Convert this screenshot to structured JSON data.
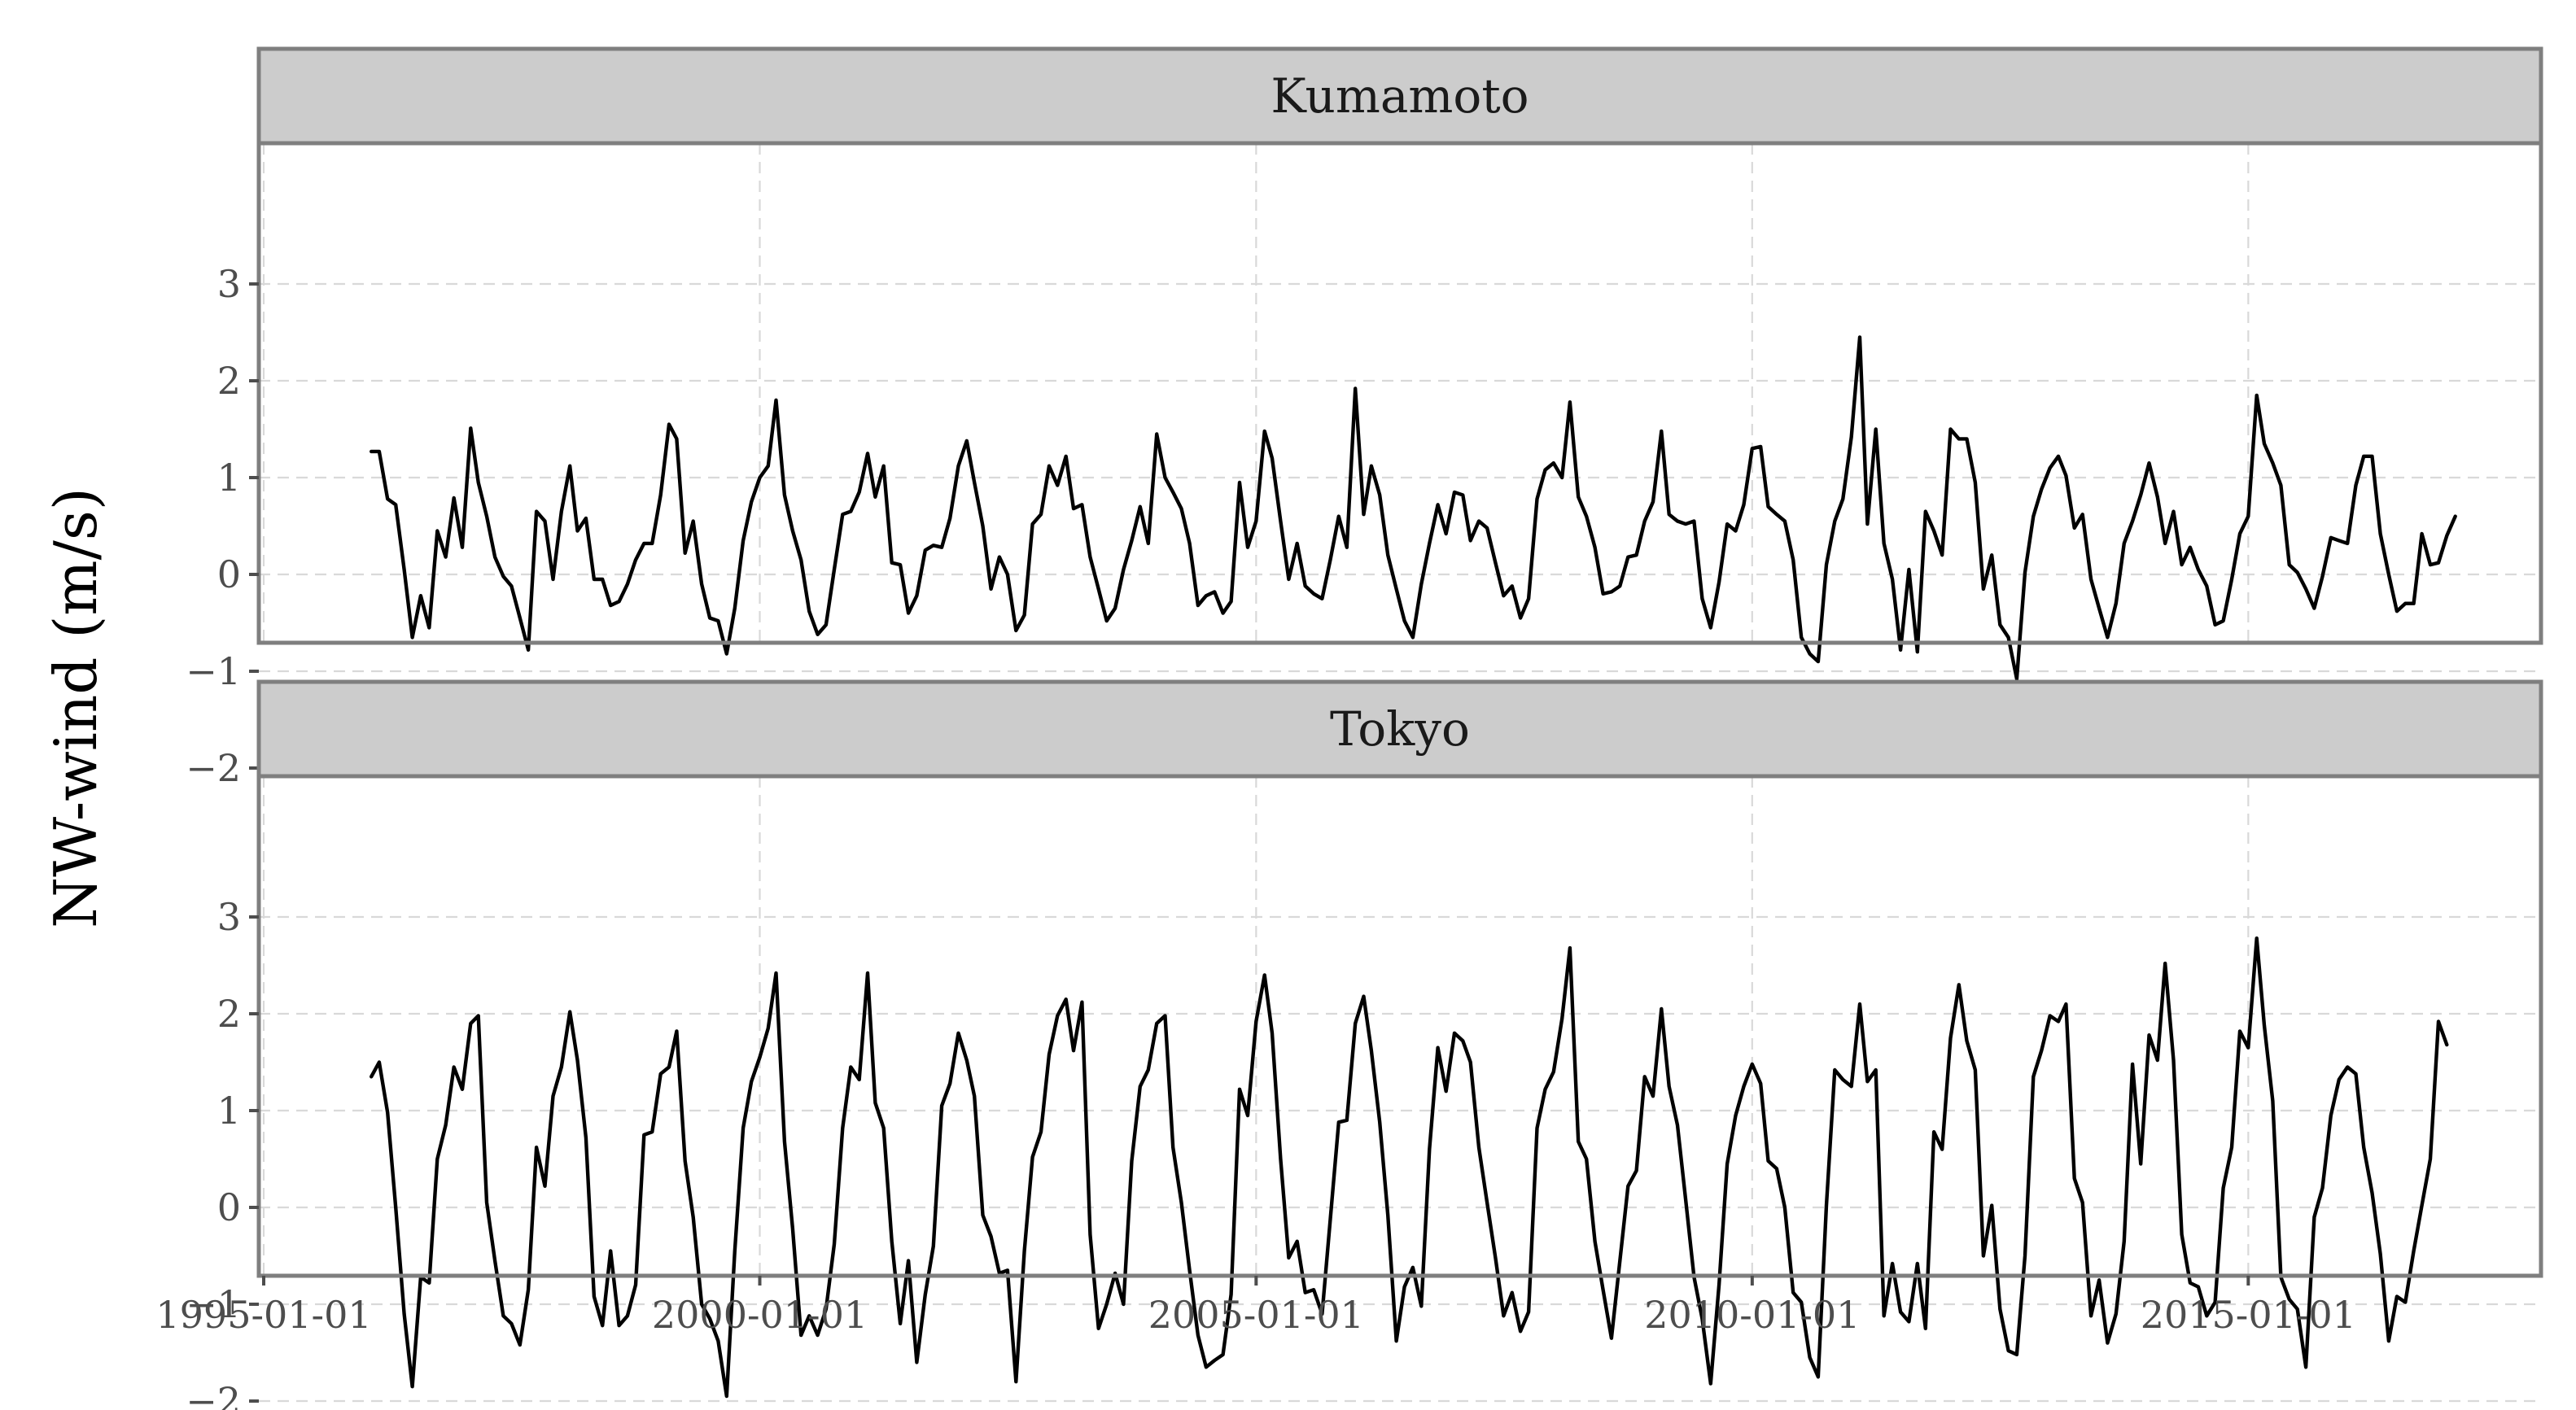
{
  "chart_data": {
    "type": "line",
    "ylabel": "NW-wind (m/s)",
    "xlabel": "",
    "x_ticks": [
      "1995-01-01",
      "2000-01-01",
      "2005-01-01",
      "2010-01-01",
      "2015-01-01"
    ],
    "xlim": [
      "1995-01-01",
      "2018-01-01"
    ],
    "ylim": [
      -2.2,
      3.0
    ],
    "y_ticks": [
      3,
      2,
      1,
      0,
      -1,
      -2
    ],
    "y_tick_labels": [
      "3",
      "2",
      "1",
      "0",
      "−1",
      "−2"
    ],
    "grid": true,
    "facet_by": "station",
    "series_start": "1996-02-01",
    "series_frequency": "monthly",
    "series": [
      {
        "name": "Kumamoto",
        "values": [
          1.27,
          1.27,
          0.78,
          0.72,
          0.05,
          -0.65,
          -0.22,
          -0.55,
          0.45,
          0.18,
          0.79,
          0.28,
          1.51,
          0.95,
          0.6,
          0.18,
          -0.02,
          -0.12,
          -0.45,
          -0.78,
          0.65,
          0.55,
          -0.05,
          0.65,
          1.12,
          0.45,
          0.58,
          -0.05,
          -0.05,
          -0.32,
          -0.28,
          -0.1,
          0.15,
          0.32,
          0.32,
          0.82,
          1.55,
          1.4,
          0.22,
          0.55,
          -0.1,
          -0.45,
          -0.48,
          -0.82,
          -0.35,
          0.35,
          0.75,
          1.0,
          1.12,
          1.8,
          0.82,
          0.45,
          0.15,
          -0.38,
          -0.62,
          -0.52,
          0.05,
          0.62,
          0.65,
          0.85,
          1.25,
          0.8,
          1.12,
          0.12,
          0.1,
          -0.4,
          -0.22,
          0.25,
          0.3,
          0.28,
          0.58,
          1.12,
          1.38,
          0.95,
          0.5,
          -0.15,
          0.18,
          0.0,
          -0.58,
          -0.42,
          0.52,
          0.62,
          1.12,
          0.92,
          1.22,
          0.68,
          0.72,
          0.18,
          -0.15,
          -0.48,
          -0.35,
          0.05,
          0.35,
          0.7,
          0.32,
          1.45,
          1.0,
          0.85,
          0.68,
          0.32,
          -0.32,
          -0.22,
          -0.18,
          -0.4,
          -0.28,
          0.95,
          0.28,
          0.55,
          1.48,
          1.2,
          0.55,
          -0.05,
          0.32,
          -0.12,
          -0.2,
          -0.25,
          0.15,
          0.6,
          0.28,
          1.92,
          0.62,
          1.12,
          0.82,
          0.2,
          -0.15,
          -0.48,
          -0.65,
          -0.1,
          0.32,
          0.72,
          0.42,
          0.85,
          0.82,
          0.35,
          0.55,
          0.48,
          0.12,
          -0.22,
          -0.12,
          -0.45,
          -0.25,
          0.78,
          1.08,
          1.15,
          1.0,
          1.78,
          0.8,
          0.6,
          0.28,
          -0.2,
          -0.18,
          -0.12,
          0.18,
          0.2,
          0.55,
          0.75,
          1.48,
          0.62,
          0.55,
          0.52,
          0.55,
          -0.25,
          -0.55,
          -0.08,
          0.52,
          0.45,
          0.72,
          1.3,
          1.32,
          0.7,
          0.62,
          0.55,
          0.15,
          -0.65,
          -0.82,
          -0.9,
          0.1,
          0.55,
          0.78,
          1.42,
          2.45,
          0.52,
          1.5,
          0.32,
          -0.05,
          -0.78,
          0.05,
          -0.8,
          0.65,
          0.45,
          0.2,
          1.5,
          1.4,
          1.4,
          0.95,
          -0.15,
          0.2,
          -0.52,
          -0.65,
          -1.08,
          0.02,
          0.6,
          0.88,
          1.1,
          1.22,
          1.02,
          0.48,
          0.62,
          -0.05,
          -0.35,
          -0.65,
          -0.3,
          0.32,
          0.55,
          0.82,
          1.15,
          0.8,
          0.32,
          0.65,
          0.1,
          0.28,
          0.05,
          -0.12,
          -0.52,
          -0.48,
          -0.05,
          0.42,
          0.6,
          1.85,
          1.35,
          1.15,
          0.92,
          0.1,
          0.02,
          -0.15,
          -0.35,
          -0.02,
          0.38,
          0.35,
          0.32,
          0.92,
          1.22,
          1.22,
          0.42,
          0.0,
          -0.38,
          -0.3,
          -0.3,
          0.42,
          0.1,
          0.12,
          0.4,
          0.6
        ]
      },
      {
        "name": "Tokyo",
        "values": [
          1.35,
          1.5,
          0.98,
          0.0,
          -1.1,
          -1.85,
          -0.72,
          -0.78,
          0.5,
          0.85,
          1.45,
          1.22,
          1.9,
          1.98,
          0.05,
          -0.55,
          -1.12,
          -1.2,
          -1.42,
          -0.85,
          0.62,
          0.22,
          1.15,
          1.45,
          2.02,
          1.52,
          0.72,
          -0.92,
          -1.22,
          -0.45,
          -1.22,
          -1.12,
          -0.8,
          0.75,
          0.78,
          1.38,
          1.45,
          1.82,
          0.48,
          -0.1,
          -1.0,
          -1.15,
          -1.38,
          -1.95,
          -0.45,
          0.82,
          1.3,
          1.55,
          1.85,
          2.42,
          0.68,
          -0.22,
          -1.32,
          -1.12,
          -1.32,
          -1.05,
          -0.38,
          0.82,
          1.45,
          1.32,
          2.42,
          1.08,
          0.82,
          -0.35,
          -1.2,
          -0.55,
          -1.6,
          -0.9,
          -0.4,
          1.05,
          1.28,
          1.8,
          1.52,
          1.15,
          -0.08,
          -0.3,
          -0.68,
          -0.65,
          -1.8,
          -0.45,
          0.52,
          0.78,
          1.58,
          1.98,
          2.15,
          1.62,
          2.12,
          -0.28,
          -1.25,
          -1.0,
          -0.68,
          -1.0,
          0.48,
          1.25,
          1.42,
          1.9,
          1.98,
          0.62,
          0.05,
          -0.65,
          -1.32,
          -1.65,
          -1.58,
          -1.52,
          -0.9,
          1.22,
          0.95,
          1.92,
          2.4,
          1.8,
          0.5,
          -0.52,
          -0.35,
          -0.88,
          -0.85,
          -1.1,
          -0.12,
          0.88,
          0.9,
          1.9,
          2.18,
          1.62,
          0.88,
          -0.08,
          -1.38,
          -0.82,
          -0.62,
          -1.02,
          0.6,
          1.65,
          1.2,
          1.8,
          1.72,
          1.5,
          0.62,
          0.05,
          -0.52,
          -1.12,
          -0.88,
          -1.28,
          -1.08,
          0.82,
          1.22,
          1.4,
          1.95,
          2.68,
          0.68,
          0.5,
          -0.35,
          -0.85,
          -1.35,
          -0.55,
          0.22,
          0.38,
          1.35,
          1.15,
          2.05,
          1.25,
          0.85,
          0.08,
          -0.72,
          -1.15,
          -1.82,
          -0.8,
          0.45,
          0.95,
          1.25,
          1.48,
          1.28,
          0.48,
          0.4,
          0.0,
          -0.88,
          -0.98,
          -1.55,
          -1.75,
          0.02,
          1.42,
          1.32,
          1.25,
          2.1,
          1.3,
          1.42,
          -1.12,
          -0.58,
          -1.08,
          -1.18,
          -0.58,
          -1.25,
          0.78,
          0.6,
          1.75,
          2.3,
          1.72,
          1.42,
          -0.5,
          0.02,
          -1.05,
          -1.48,
          -1.52,
          -0.5,
          1.35,
          1.62,
          1.98,
          1.92,
          2.1,
          0.3,
          0.05,
          -1.12,
          -0.75,
          -1.4,
          -1.1,
          -0.35,
          1.48,
          0.45,
          1.78,
          1.52,
          2.52,
          1.52,
          -0.28,
          -0.78,
          -0.82,
          -1.12,
          -0.98,
          0.2,
          0.62,
          1.82,
          1.65,
          2.78,
          1.88,
          1.1,
          -0.72,
          -0.95,
          -1.05,
          -1.65,
          -0.1,
          0.2,
          0.95,
          1.32,
          1.45,
          1.38,
          0.62,
          0.15,
          -0.48,
          -1.38,
          -0.92,
          -0.98,
          -0.45,
          0.02,
          0.5,
          1.92,
          1.68
        ]
      }
    ]
  }
}
